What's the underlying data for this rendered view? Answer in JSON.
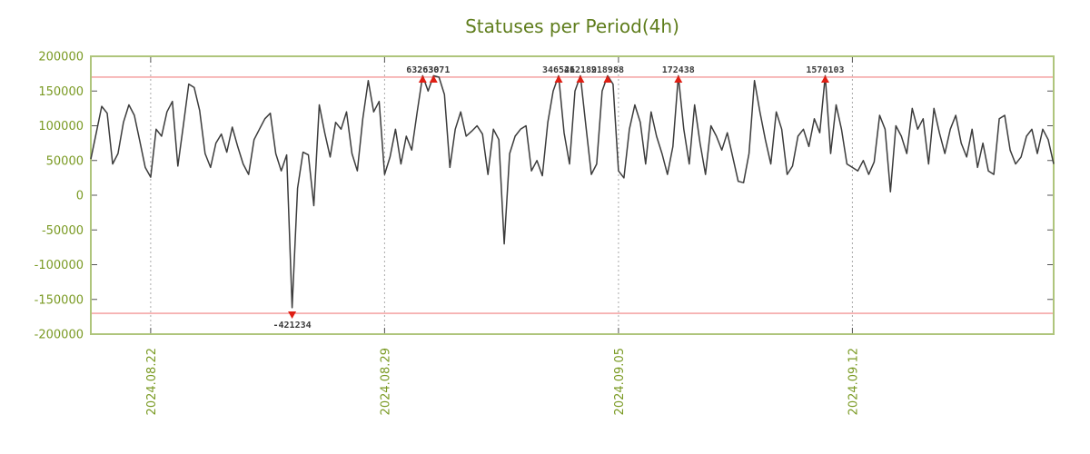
{
  "chart_data": {
    "type": "line",
    "title": "Statuses per Period(4h)",
    "series_name": "statuses",
    "xlabel": "",
    "ylabel": "",
    "ylim": [
      -200000,
      200000
    ],
    "y_ticks": [
      200000,
      150000,
      100000,
      50000,
      0,
      -50000,
      -100000,
      -150000,
      -200000
    ],
    "x_ticks": [
      {
        "index": 11,
        "label": "2024.08.22"
      },
      {
        "index": 54,
        "label": "2024.08.29"
      },
      {
        "index": 97,
        "label": "2024.09.05"
      },
      {
        "index": 140,
        "label": "2024.09.12"
      }
    ],
    "grid": "vertical-dashed",
    "legend": "none",
    "threshold": {
      "upper": 170000,
      "lower": -170000
    },
    "clip": {
      "upper": 172000,
      "lower": -162000
    },
    "values": [
      52000,
      90000,
      128000,
      118000,
      45000,
      60000,
      105000,
      130000,
      115000,
      78000,
      40000,
      26000,
      95000,
      85000,
      120000,
      135000,
      42000,
      100000,
      160000,
      155000,
      122000,
      60000,
      40000,
      75000,
      88000,
      62000,
      98000,
      70000,
      45000,
      30000,
      80000,
      95000,
      110000,
      118000,
      60000,
      35000,
      58000,
      -421234,
      10000,
      62000,
      58000,
      -15000,
      130000,
      90000,
      55000,
      105000,
      95000,
      120000,
      60000,
      35000,
      110000,
      165000,
      120000,
      135000,
      30000,
      55000,
      95000,
      45000,
      85000,
      65000,
      120000,
      632630,
      150000,
      263071,
      170000,
      145000,
      40000,
      95000,
      120000,
      85000,
      92000,
      100000,
      88000,
      30000,
      95000,
      80000,
      -70000,
      60000,
      85000,
      95000,
      100000,
      35000,
      50000,
      28000,
      105000,
      150000,
      346526,
      90000,
      45000,
      150000,
      412189,
      100000,
      30000,
      45000,
      150000,
      218988,
      160000,
      35000,
      25000,
      95000,
      130000,
      105000,
      45000,
      120000,
      85000,
      60000,
      30000,
      70000,
      172438,
      95000,
      45000,
      130000,
      75000,
      30000,
      100000,
      85000,
      65000,
      90000,
      55000,
      20000,
      18000,
      60000,
      165000,
      120000,
      80000,
      45000,
      120000,
      95000,
      30000,
      42000,
      85000,
      95000,
      70000,
      110000,
      90000,
      1570103,
      60000,
      130000,
      95000,
      45000,
      40000,
      35000,
      50000,
      30000,
      48000,
      115000,
      95000,
      5000,
      100000,
      85000,
      60000,
      125000,
      95000,
      110000,
      45000,
      125000,
      90000,
      60000,
      95000,
      115000,
      75000,
      55000,
      95000,
      40000,
      75000,
      35000,
      30000,
      110000,
      115000,
      65000,
      45000,
      55000,
      85000,
      95000,
      60000,
      95000,
      80000,
      45000
    ],
    "annotations": [
      {
        "index": 37,
        "value": -421234,
        "label": "-421234",
        "dir": "down"
      },
      {
        "index": 61,
        "value": 632630,
        "label": "632630",
        "dir": "up"
      },
      {
        "index": 63,
        "value": 263071,
        "label": "263071",
        "dir": "up"
      },
      {
        "index": 86,
        "value": 346526,
        "label": "346526",
        "dir": "up"
      },
      {
        "index": 90,
        "value": 412189,
        "label": "412189",
        "dir": "up"
      },
      {
        "index": 95,
        "value": 218988,
        "label": "218988",
        "dir": "up"
      },
      {
        "index": 108,
        "value": 172438,
        "label": "172438",
        "dir": "up"
      },
      {
        "index": 135,
        "value": 1570103,
        "label": "1570103",
        "dir": "up"
      }
    ],
    "colors": {
      "title": "#5f7d1c",
      "axis_text": "#7a9a23",
      "line": "#3c3c3c",
      "threshold": "#f08080",
      "marker": "#df1f14",
      "marker_label": "#3c3c3c",
      "border": "#afc57c",
      "grid": "#aaaaaa",
      "tick": "#555555",
      "background": "#ffffff"
    }
  }
}
